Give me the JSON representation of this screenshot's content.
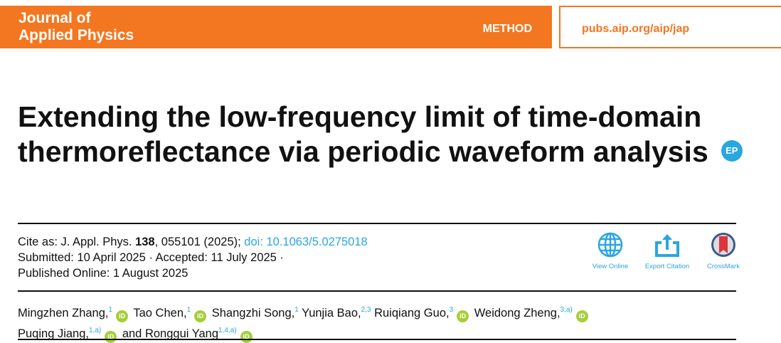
{
  "header": {
    "journal_line1": "Journal of",
    "journal_line2": "Applied Physics",
    "article_type": "METHOD",
    "url": "pubs.aip.org/aip/jap"
  },
  "title": "Extending the low-frequency limit of time-domain thermoreflectance via periodic waveform analysis",
  "badge": "EP",
  "citation": {
    "prefix": "Cite as: J. Appl. Phys. ",
    "volume": "138",
    "rest": ", 055101 (2025); ",
    "doi": "doi: 10.1063/5.0275018",
    "submitted": "Submitted: 10 April 2025 · Accepted: 11 July 2025 ·",
    "published": "Published Online: 1 August 2025"
  },
  "tools": {
    "view_online": "View Online",
    "export_citation": "Export Citation",
    "crossmark": "CrossMark"
  },
  "orcid_label": "iD",
  "authors": [
    {
      "name": "Mingzhen Zhang,",
      "aff": "1"
    },
    {
      "name": "Tao Chen,",
      "aff": "1"
    },
    {
      "name": "Shangzhi Song,",
      "aff": "1"
    },
    {
      "name": "Yunjia Bao,",
      "aff": "2,3"
    },
    {
      "name": "Ruiqiang Guo,",
      "aff": "3"
    },
    {
      "name": "Weidong Zheng,",
      "aff": "3,a)"
    },
    {
      "name": "Puqing Jiang,",
      "aff": "1,a)"
    },
    {
      "name": "and Ronggui Yang",
      "aff": "1,4,a)"
    }
  ]
}
